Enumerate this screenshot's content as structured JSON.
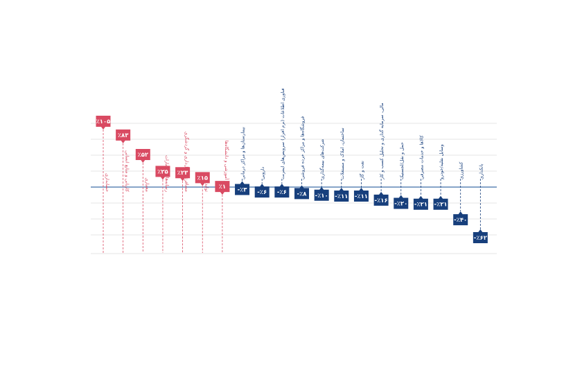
{
  "chart_data": {
    "type": "bar",
    "title": "",
    "xlabel": "",
    "ylabel": "",
    "grid": true,
    "value_format": "percent, Persian digits",
    "colors": {
      "positive": "#d94a62",
      "negative": "#173f7c",
      "baseline": "#3f6ea8",
      "grid": "#dcdcdc"
    },
    "categories": [
      "حسابداری",
      "کاریابی و منابع انسانی",
      "معماری",
      "رسانه‌ها و انتشارات",
      "مسافرتی، هتل‌داری و گردشگری",
      "تولیدی",
      "مراکز آموزشی و دانشگاه‌ها",
      "بیمارستان‌ها و مراکز درمانی",
      "دارویی",
      "فناوری اطلاعات (نرم افزار) سرویس‌های اینترنت",
      "فروشگاه‌ها و مراکز خرده فروشی",
      "شرکت‌های بیمه‌گذاری",
      "ساختمان، املاک و مستغلات",
      "نفت و گاز",
      "مالی، سرمایه گذاری و تحلیل کسب و کار",
      "حمل و نقل/لجستیک",
      "کالاها و خدمات مصرفی",
      "وسایل نقلیه/خودرو",
      "کشاورزی",
      "بانکداری"
    ],
    "values": [
      105,
      83,
      52,
      25,
      23,
      15,
      1,
      -3,
      -6,
      -6,
      -8,
      -10,
      -11,
      -11,
      -16,
      -20,
      -21,
      -21,
      -40,
      -62
    ],
    "value_labels": [
      "٪۱۰۵",
      "٪۸۳",
      "٪۵۲",
      "٪۲۵",
      "٪۲۳",
      "٪۱۵",
      "٪۱",
      "-٪۳",
      "-٪۶",
      "-٪۶",
      "-٪۸",
      "-٪۱۰",
      "-٪۱۱",
      "-٪۱۱",
      "-٪۱۶",
      "-٪۲۰",
      "-٪۲۱",
      "-٪۲۱",
      "-٪۴۰",
      "-٪۶۲"
    ]
  }
}
